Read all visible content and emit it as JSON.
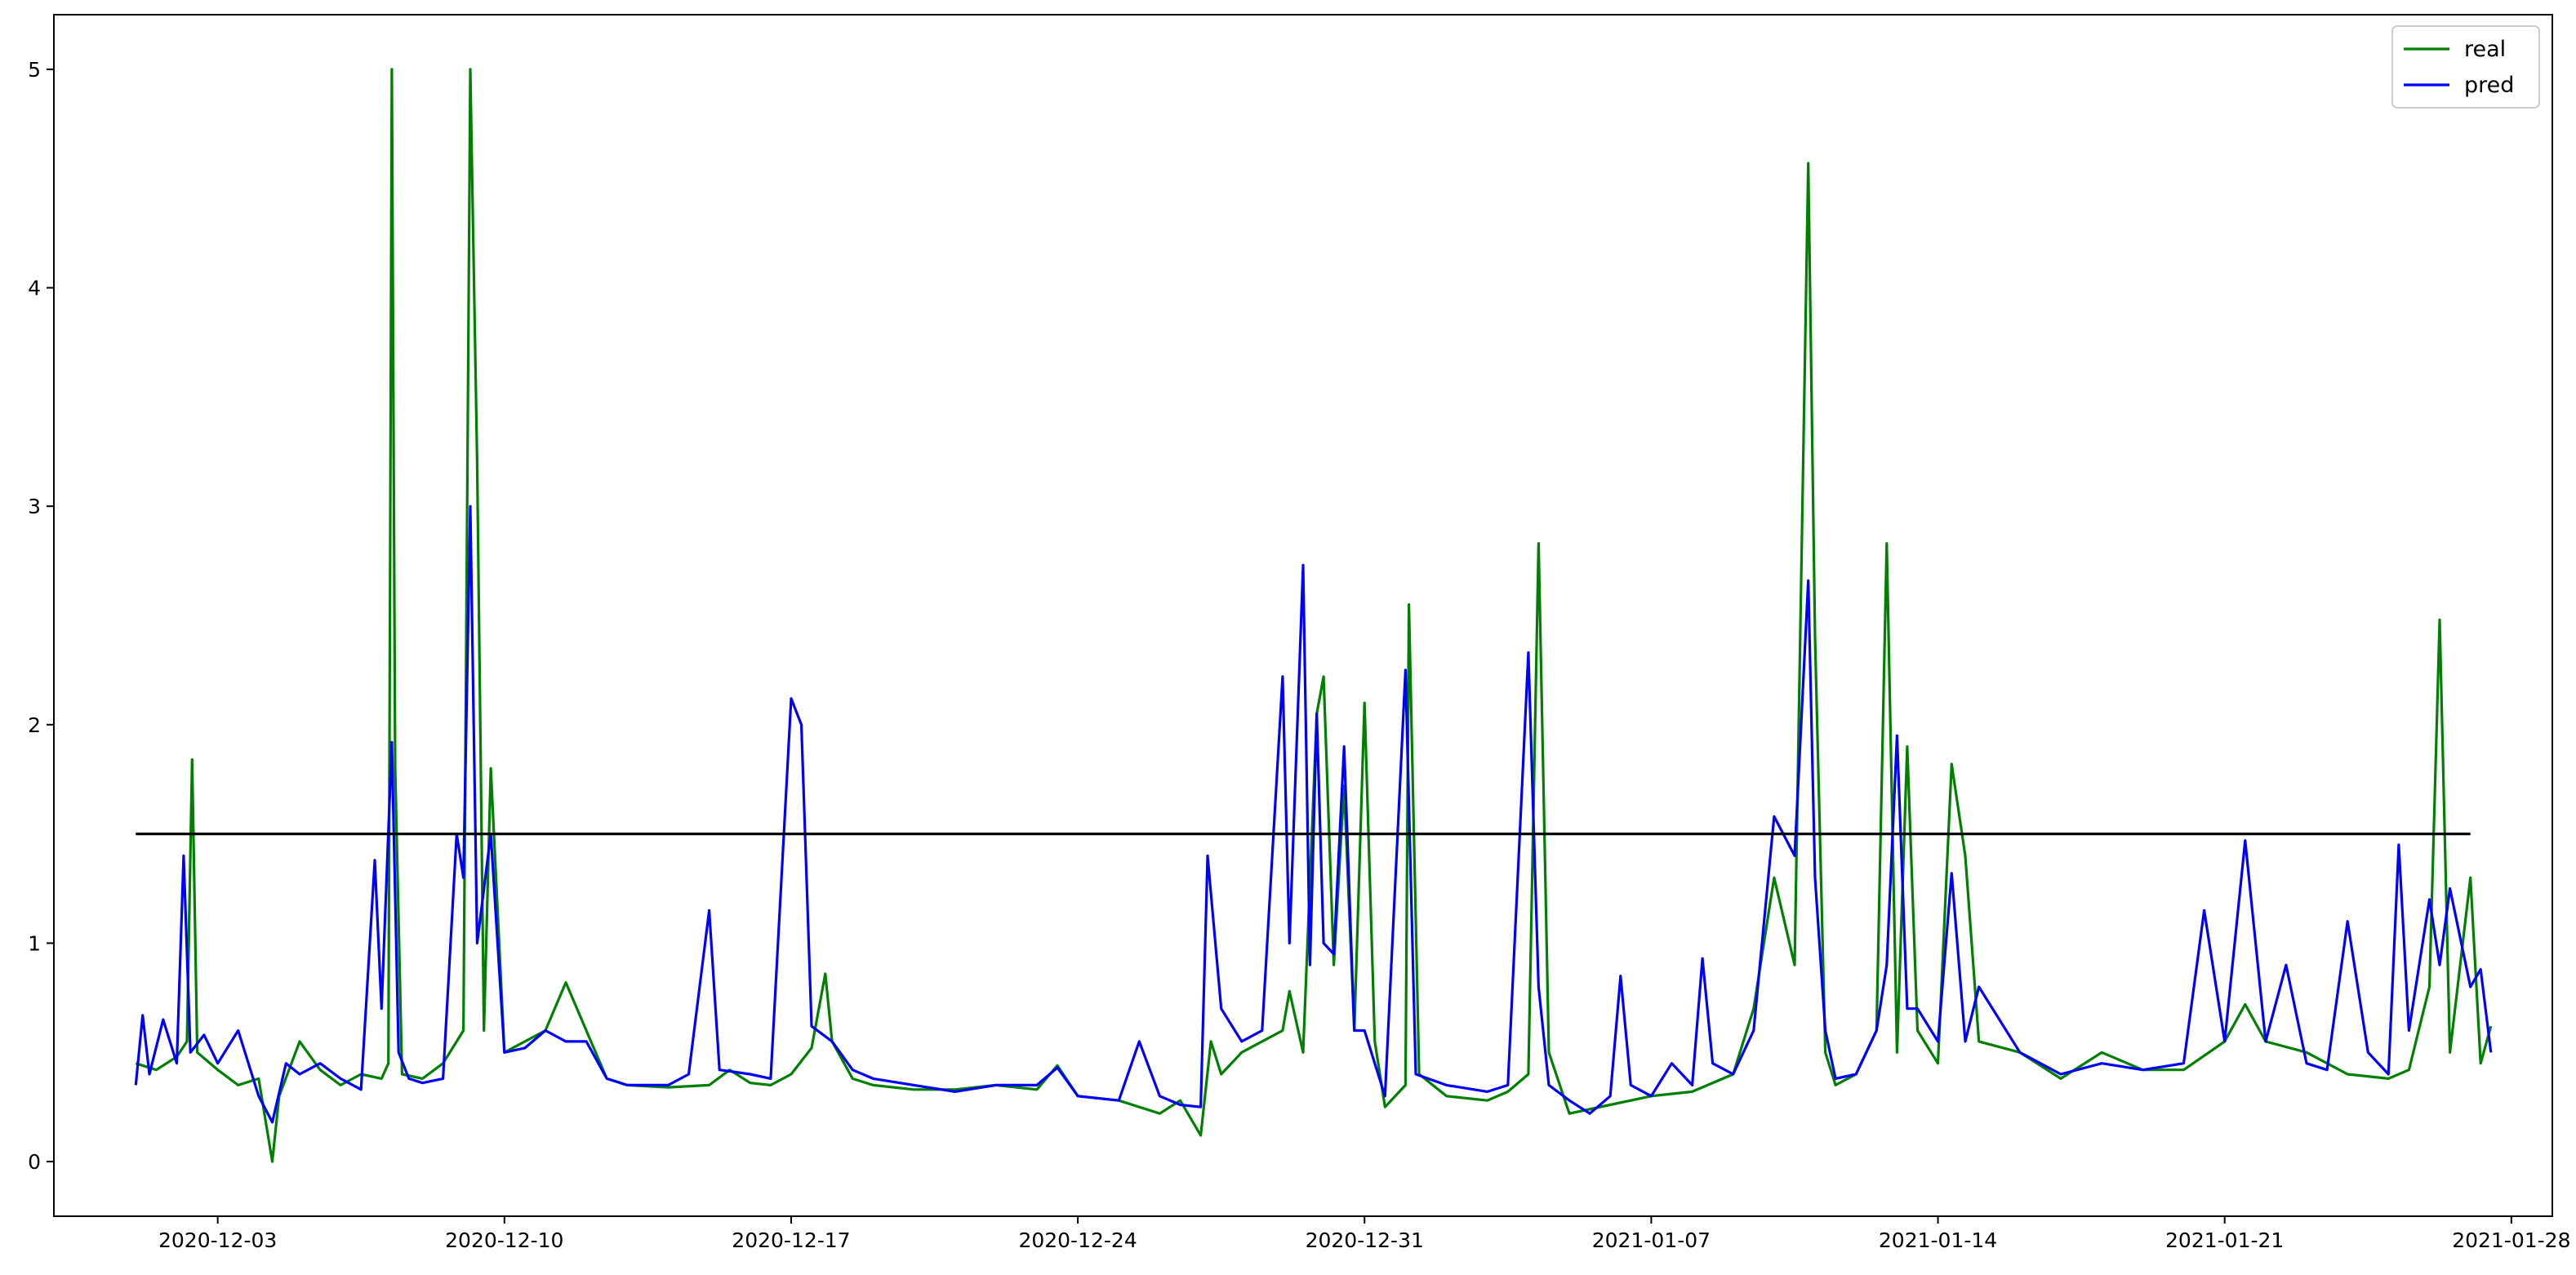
{
  "chart_data": {
    "type": "line",
    "x_axis": {
      "type": "date",
      "range": [
        "2020-11-29",
        "2021-01-29"
      ],
      "ticks": [
        "2020-12-03",
        "2020-12-10",
        "2020-12-17",
        "2020-12-24",
        "2020-12-31",
        "2021-01-07",
        "2021-01-14",
        "2021-01-21",
        "2021-01-28"
      ]
    },
    "y_axis": {
      "range": [
        -0.25,
        5.25
      ],
      "ticks": [
        "0",
        "1",
        "2",
        "3",
        "4",
        "5"
      ]
    },
    "grid": false,
    "legend": {
      "placement": "top-right",
      "entries": [
        "real",
        "pred"
      ]
    },
    "reference_line": {
      "y": 1.5,
      "x_range": [
        "2020-12-01",
        "2021-01-27"
      ],
      "color": "#000000"
    },
    "series": [
      {
        "name": "real",
        "color": "#008000",
        "points": [
          [
            "2020-12-01",
            0.45
          ],
          [
            "2020-12-01T12",
            0.42
          ],
          [
            "2020-12-02",
            0.48
          ],
          [
            "2020-12-02T06",
            0.55
          ],
          [
            "2020-12-02T09",
            1.84
          ],
          [
            "2020-12-02T12",
            0.5
          ],
          [
            "2020-12-03",
            0.42
          ],
          [
            "2020-12-03T12",
            0.35
          ],
          [
            "2020-12-04",
            0.38
          ],
          [
            "2020-12-04T08",
            0.0
          ],
          [
            "2020-12-04T12",
            0.3
          ],
          [
            "2020-12-05",
            0.55
          ],
          [
            "2020-12-05T12",
            0.42
          ],
          [
            "2020-12-06",
            0.35
          ],
          [
            "2020-12-06T12",
            0.4
          ],
          [
            "2020-12-07",
            0.38
          ],
          [
            "2020-12-07T04",
            0.45
          ],
          [
            "2020-12-07T06",
            5.0
          ],
          [
            "2020-12-07T08",
            1.8
          ],
          [
            "2020-12-07T12",
            0.4
          ],
          [
            "2020-12-08",
            0.38
          ],
          [
            "2020-12-08T12",
            0.45
          ],
          [
            "2020-12-09",
            0.6
          ],
          [
            "2020-12-09T04",
            5.0
          ],
          [
            "2020-12-09T08",
            3.2
          ],
          [
            "2020-12-09T12",
            0.6
          ],
          [
            "2020-12-09T16",
            1.8
          ],
          [
            "2020-12-10",
            0.5
          ],
          [
            "2020-12-10T12",
            0.55
          ],
          [
            "2020-12-11",
            0.6
          ],
          [
            "2020-12-11T12",
            0.82
          ],
          [
            "2020-12-12",
            0.6
          ],
          [
            "2020-12-12T12",
            0.38
          ],
          [
            "2020-12-13",
            0.35
          ],
          [
            "2020-12-14",
            0.34
          ],
          [
            "2020-12-15",
            0.35
          ],
          [
            "2020-12-15T12",
            0.42
          ],
          [
            "2020-12-16",
            0.36
          ],
          [
            "2020-12-16T12",
            0.35
          ],
          [
            "2020-12-17",
            0.4
          ],
          [
            "2020-12-17T12",
            0.52
          ],
          [
            "2020-12-17T20",
            0.86
          ],
          [
            "2020-12-18",
            0.55
          ],
          [
            "2020-12-18T12",
            0.38
          ],
          [
            "2020-12-19",
            0.35
          ],
          [
            "2020-12-20",
            0.33
          ],
          [
            "2020-12-21",
            0.33
          ],
          [
            "2020-12-22",
            0.35
          ],
          [
            "2020-12-23",
            0.33
          ],
          [
            "2020-12-23T12",
            0.44
          ],
          [
            "2020-12-24",
            0.3
          ],
          [
            "2020-12-25",
            0.28
          ],
          [
            "2020-12-26",
            0.22
          ],
          [
            "2020-12-26T12",
            0.28
          ],
          [
            "2020-12-27",
            0.12
          ],
          [
            "2020-12-27T06",
            0.55
          ],
          [
            "2020-12-27T12",
            0.4
          ],
          [
            "2020-12-28",
            0.5
          ],
          [
            "2020-12-28T12",
            0.55
          ],
          [
            "2020-12-29",
            0.6
          ],
          [
            "2020-12-29T04",
            0.78
          ],
          [
            "2020-12-29T12",
            0.5
          ],
          [
            "2020-12-29T20",
            2.05
          ],
          [
            "2020-12-30",
            2.22
          ],
          [
            "2020-12-30T06",
            0.9
          ],
          [
            "2020-12-30T12",
            1.72
          ],
          [
            "2020-12-30T18",
            0.6
          ],
          [
            "2020-12-31",
            2.1
          ],
          [
            "2020-12-31T06",
            0.55
          ],
          [
            "2020-12-31T12",
            0.25
          ],
          [
            "2021-01-01",
            0.35
          ],
          [
            "2021-01-01T02",
            2.55
          ],
          [
            "2021-01-01T08",
            0.4
          ],
          [
            "2021-01-02",
            0.3
          ],
          [
            "2021-01-03",
            0.28
          ],
          [
            "2021-01-03T12",
            0.32
          ],
          [
            "2021-01-04",
            0.4
          ],
          [
            "2021-01-04T06",
            2.83
          ],
          [
            "2021-01-04T12",
            0.5
          ],
          [
            "2021-01-05",
            0.22
          ],
          [
            "2021-01-06",
            0.26
          ],
          [
            "2021-01-07",
            0.3
          ],
          [
            "2021-01-08",
            0.32
          ],
          [
            "2021-01-09",
            0.4
          ],
          [
            "2021-01-09T12",
            0.7
          ],
          [
            "2021-01-10",
            1.3
          ],
          [
            "2021-01-10T12",
            0.9
          ],
          [
            "2021-01-10T20",
            4.57
          ],
          [
            "2021-01-11",
            2.4
          ],
          [
            "2021-01-11T06",
            0.5
          ],
          [
            "2021-01-11T12",
            0.35
          ],
          [
            "2021-01-12",
            0.4
          ],
          [
            "2021-01-12T12",
            0.6
          ],
          [
            "2021-01-12T18",
            2.83
          ],
          [
            "2021-01-13",
            0.5
          ],
          [
            "2021-01-13T06",
            1.9
          ],
          [
            "2021-01-13T12",
            0.6
          ],
          [
            "2021-01-14",
            0.45
          ],
          [
            "2021-01-14T08",
            1.82
          ],
          [
            "2021-01-14T16",
            1.4
          ],
          [
            "2021-01-15",
            0.55
          ],
          [
            "2021-01-16",
            0.5
          ],
          [
            "2021-01-17",
            0.38
          ],
          [
            "2021-01-18",
            0.5
          ],
          [
            "2021-01-19",
            0.42
          ],
          [
            "2021-01-20",
            0.42
          ],
          [
            "2021-01-21",
            0.55
          ],
          [
            "2021-01-21T12",
            0.72
          ],
          [
            "2021-01-22",
            0.55
          ],
          [
            "2021-01-23",
            0.5
          ],
          [
            "2021-01-24",
            0.4
          ],
          [
            "2021-01-25",
            0.38
          ],
          [
            "2021-01-25T12",
            0.42
          ],
          [
            "2021-01-26",
            0.8
          ],
          [
            "2021-01-26T06",
            2.48
          ],
          [
            "2021-01-26T12",
            0.5
          ],
          [
            "2021-01-27",
            1.3
          ],
          [
            "2021-01-27T06",
            0.45
          ],
          [
            "2021-01-27T12",
            0.62
          ]
        ]
      },
      {
        "name": "pred",
        "color": "#0000ff",
        "points": [
          [
            "2020-12-01",
            0.35
          ],
          [
            "2020-12-01T04",
            0.67
          ],
          [
            "2020-12-01T08",
            0.4
          ],
          [
            "2020-12-01T16",
            0.65
          ],
          [
            "2020-12-02",
            0.45
          ],
          [
            "2020-12-02T04",
            1.4
          ],
          [
            "2020-12-02T08",
            0.5
          ],
          [
            "2020-12-02T16",
            0.58
          ],
          [
            "2020-12-03",
            0.45
          ],
          [
            "2020-12-03T12",
            0.6
          ],
          [
            "2020-12-04",
            0.3
          ],
          [
            "2020-12-04T08",
            0.18
          ],
          [
            "2020-12-04T16",
            0.45
          ],
          [
            "2020-12-05",
            0.4
          ],
          [
            "2020-12-05T12",
            0.45
          ],
          [
            "2020-12-06",
            0.38
          ],
          [
            "2020-12-06T12",
            0.33
          ],
          [
            "2020-12-06T20",
            1.38
          ],
          [
            "2020-12-07",
            0.7
          ],
          [
            "2020-12-07T06",
            1.92
          ],
          [
            "2020-12-07T10",
            0.5
          ],
          [
            "2020-12-07T16",
            0.38
          ],
          [
            "2020-12-08",
            0.36
          ],
          [
            "2020-12-08T12",
            0.38
          ],
          [
            "2020-12-08T20",
            1.5
          ],
          [
            "2020-12-09",
            1.3
          ],
          [
            "2020-12-09T04",
            3.0
          ],
          [
            "2020-12-09T08",
            1.0
          ],
          [
            "2020-12-09T16",
            1.5
          ],
          [
            "2020-12-10",
            0.5
          ],
          [
            "2020-12-10T12",
            0.52
          ],
          [
            "2020-12-11",
            0.6
          ],
          [
            "2020-12-11T12",
            0.55
          ],
          [
            "2020-12-12",
            0.55
          ],
          [
            "2020-12-12T12",
            0.38
          ],
          [
            "2020-12-13",
            0.35
          ],
          [
            "2020-12-14",
            0.35
          ],
          [
            "2020-12-14T12",
            0.4
          ],
          [
            "2020-12-15",
            1.15
          ],
          [
            "2020-12-15T06",
            0.42
          ],
          [
            "2020-12-16",
            0.4
          ],
          [
            "2020-12-16T12",
            0.38
          ],
          [
            "2020-12-17",
            2.12
          ],
          [
            "2020-12-17T06",
            2.0
          ],
          [
            "2020-12-17T12",
            0.62
          ],
          [
            "2020-12-18",
            0.55
          ],
          [
            "2020-12-18T12",
            0.42
          ],
          [
            "2020-12-19",
            0.38
          ],
          [
            "2020-12-20",
            0.35
          ],
          [
            "2020-12-21",
            0.32
          ],
          [
            "2020-12-22",
            0.35
          ],
          [
            "2020-12-23",
            0.35
          ],
          [
            "2020-12-23T12",
            0.43
          ],
          [
            "2020-12-24",
            0.3
          ],
          [
            "2020-12-25",
            0.28
          ],
          [
            "2020-12-25T12",
            0.55
          ],
          [
            "2020-12-26",
            0.3
          ],
          [
            "2020-12-26T12",
            0.26
          ],
          [
            "2020-12-27",
            0.25
          ],
          [
            "2020-12-27T04",
            1.4
          ],
          [
            "2020-12-27T12",
            0.7
          ],
          [
            "2020-12-28",
            0.55
          ],
          [
            "2020-12-28T12",
            0.6
          ],
          [
            "2020-12-29",
            2.22
          ],
          [
            "2020-12-29T04",
            1.0
          ],
          [
            "2020-12-29T12",
            2.73
          ],
          [
            "2020-12-29T16",
            0.9
          ],
          [
            "2020-12-29T20",
            2.05
          ],
          [
            "2020-12-30",
            1.0
          ],
          [
            "2020-12-30T06",
            0.95
          ],
          [
            "2020-12-30T12",
            1.9
          ],
          [
            "2020-12-30T18",
            0.6
          ],
          [
            "2020-12-31",
            0.6
          ],
          [
            "2020-12-31T12",
            0.3
          ],
          [
            "2021-01-01",
            2.25
          ],
          [
            "2021-01-01T06",
            0.4
          ],
          [
            "2021-01-02",
            0.35
          ],
          [
            "2021-01-03",
            0.32
          ],
          [
            "2021-01-03T12",
            0.35
          ],
          [
            "2021-01-04",
            2.33
          ],
          [
            "2021-01-04T06",
            0.8
          ],
          [
            "2021-01-04T12",
            0.35
          ],
          [
            "2021-01-05",
            0.28
          ],
          [
            "2021-01-05T12",
            0.22
          ],
          [
            "2021-01-06",
            0.3
          ],
          [
            "2021-01-06T06",
            0.85
          ],
          [
            "2021-01-06T12",
            0.35
          ],
          [
            "2021-01-07",
            0.3
          ],
          [
            "2021-01-07T12",
            0.45
          ],
          [
            "2021-01-08",
            0.35
          ],
          [
            "2021-01-08T06",
            0.93
          ],
          [
            "2021-01-08T12",
            0.45
          ],
          [
            "2021-01-09",
            0.4
          ],
          [
            "2021-01-09T12",
            0.6
          ],
          [
            "2021-01-10",
            1.58
          ],
          [
            "2021-01-10T12",
            1.4
          ],
          [
            "2021-01-10T20",
            2.66
          ],
          [
            "2021-01-11",
            1.3
          ],
          [
            "2021-01-11T06",
            0.6
          ],
          [
            "2021-01-11T12",
            0.38
          ],
          [
            "2021-01-12",
            0.4
          ],
          [
            "2021-01-12T12",
            0.6
          ],
          [
            "2021-01-12T18",
            0.9
          ],
          [
            "2021-01-13",
            1.95
          ],
          [
            "2021-01-13T06",
            0.7
          ],
          [
            "2021-01-13T12",
            0.7
          ],
          [
            "2021-01-14",
            0.55
          ],
          [
            "2021-01-14T08",
            1.32
          ],
          [
            "2021-01-14T16",
            0.55
          ],
          [
            "2021-01-15",
            0.8
          ],
          [
            "2021-01-16",
            0.5
          ],
          [
            "2021-01-17",
            0.4
          ],
          [
            "2021-01-18",
            0.45
          ],
          [
            "2021-01-19",
            0.42
          ],
          [
            "2021-01-20",
            0.45
          ],
          [
            "2021-01-20T12",
            1.15
          ],
          [
            "2021-01-21",
            0.55
          ],
          [
            "2021-01-21T12",
            1.47
          ],
          [
            "2021-01-22",
            0.55
          ],
          [
            "2021-01-22T12",
            0.9
          ],
          [
            "2021-01-23",
            0.45
          ],
          [
            "2021-01-23T12",
            0.42
          ],
          [
            "2021-01-24",
            1.1
          ],
          [
            "2021-01-24T12",
            0.5
          ],
          [
            "2021-01-25",
            0.4
          ],
          [
            "2021-01-25T06",
            1.45
          ],
          [
            "2021-01-25T12",
            0.6
          ],
          [
            "2021-01-26",
            1.2
          ],
          [
            "2021-01-26T06",
            0.9
          ],
          [
            "2021-01-26T12",
            1.25
          ],
          [
            "2021-01-27",
            0.8
          ],
          [
            "2021-01-27T06",
            0.88
          ],
          [
            "2021-01-27T12",
            0.5
          ]
        ]
      }
    ]
  }
}
